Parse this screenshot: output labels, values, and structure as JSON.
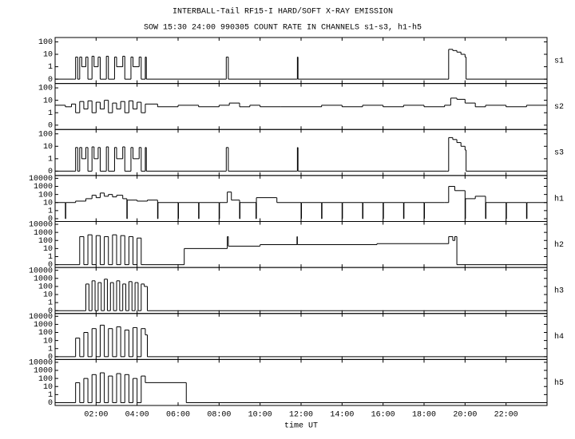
{
  "chart_data": {
    "type": "step",
    "title": "INTERBALL-Tail RF15-I HARD/SOFT X-RAY EMISSION",
    "subtitle": "SOW 15:30 24:00 990305  COUNT RATE IN CHANNELS s1-s3, h1-h5",
    "x_label": "time UT",
    "yscale": "log-with-zero",
    "color": "#000000",
    "xlim": [
      0,
      24
    ],
    "xticks": [
      {
        "value": 2,
        "label": "02:00"
      },
      {
        "value": 4,
        "label": "04:00"
      },
      {
        "value": 6,
        "label": "06:00"
      },
      {
        "value": 8,
        "label": "08:00"
      },
      {
        "value": 10,
        "label": "10:00"
      },
      {
        "value": 12,
        "label": "12:00"
      },
      {
        "value": 14,
        "label": "14:00"
      },
      {
        "value": 16,
        "label": "16:00"
      },
      {
        "value": 18,
        "label": "18:00"
      },
      {
        "value": 20,
        "label": "20:00"
      },
      {
        "value": 22,
        "label": "22:00"
      }
    ],
    "panels": [
      {
        "name": "s1",
        "ylim": [
          0,
          100
        ],
        "yticks": [
          0,
          1,
          10,
          100
        ],
        "x": [
          0,
          0.9,
          1.0,
          1.1,
          1.2,
          1.3,
          1.5,
          1.6,
          1.8,
          1.9,
          2.1,
          2.2,
          2.5,
          2.6,
          2.9,
          3.0,
          3.3,
          3.4,
          3.7,
          3.8,
          4.1,
          4.2,
          4.4,
          4.45,
          8.3,
          8.35,
          8.4,
          8.45,
          11.8,
          11.82,
          11.85,
          19.1,
          19.2,
          19.4,
          19.6,
          19.8,
          20.0,
          20.05,
          24
        ],
        "values": [
          0,
          0,
          6,
          0,
          6,
          1,
          6,
          0,
          7,
          1,
          6,
          0,
          7,
          0,
          6,
          1,
          7,
          0,
          6,
          1,
          6,
          0,
          6,
          0,
          0,
          6,
          6,
          0,
          0,
          6,
          0,
          0,
          25,
          20,
          15,
          10,
          6,
          0,
          0
        ]
      },
      {
        "name": "s2",
        "ylim": [
          0,
          100
        ],
        "yticks": [
          0,
          1,
          10,
          100
        ],
        "x": [
          0,
          0.5,
          0.8,
          1.0,
          1.2,
          1.4,
          1.6,
          1.8,
          2.0,
          2.2,
          2.4,
          2.6,
          2.8,
          3.0,
          3.2,
          3.4,
          3.6,
          3.8,
          4.0,
          4.2,
          4.4,
          5,
          6,
          7,
          8,
          8.5,
          9,
          9.5,
          10,
          11,
          12,
          13,
          14,
          15,
          16,
          17,
          18,
          19,
          19.3,
          19.6,
          20,
          20.5,
          21,
          22,
          23,
          24
        ],
        "values": [
          4,
          3,
          5,
          1,
          8,
          2,
          9,
          1,
          7,
          2,
          10,
          1,
          6,
          2,
          8,
          1,
          9,
          2,
          7,
          1,
          5,
          3,
          4,
          3,
          4,
          6,
          3,
          4,
          3,
          3,
          3,
          4,
          3,
          4,
          3,
          4,
          3,
          4,
          15,
          12,
          6,
          3,
          4,
          3,
          4,
          3
        ]
      },
      {
        "name": "s3",
        "ylim": [
          0,
          100
        ],
        "yticks": [
          0,
          1,
          10,
          100
        ],
        "x": [
          0,
          0.9,
          1.0,
          1.1,
          1.2,
          1.3,
          1.5,
          1.6,
          1.8,
          1.9,
          2.1,
          2.2,
          2.5,
          2.6,
          2.9,
          3.0,
          3.3,
          3.4,
          3.7,
          3.8,
          4.1,
          4.2,
          4.4,
          4.45,
          8.3,
          8.35,
          8.4,
          8.45,
          11.8,
          11.82,
          11.85,
          19.1,
          19.2,
          19.4,
          19.6,
          19.8,
          20.0,
          20.05,
          24
        ],
        "values": [
          0,
          0,
          8,
          0,
          8,
          1,
          8,
          0,
          9,
          1,
          8,
          0,
          9,
          0,
          8,
          1,
          9,
          0,
          8,
          1,
          8,
          0,
          8,
          0,
          0,
          8,
          8,
          0,
          0,
          8,
          0,
          0,
          50,
          35,
          20,
          10,
          5,
          0,
          0
        ]
      },
      {
        "name": "h1",
        "ylim": [
          0,
          10000
        ],
        "yticks": [
          0,
          1,
          10,
          100,
          1000,
          10000
        ],
        "x": [
          0,
          0.5,
          0.52,
          1,
          1.5,
          1.8,
          2,
          2.2,
          2.4,
          2.6,
          2.8,
          3,
          3.3,
          3.5,
          3.52,
          4,
          4.5,
          5,
          5.02,
          6,
          6.02,
          7,
          7.02,
          8,
          8.02,
          8.4,
          8.6,
          9,
          9.02,
          9.8,
          9.82,
          10.8,
          10.82,
          12,
          12.02,
          13,
          13.02,
          14,
          14.02,
          15,
          15.02,
          16,
          16.02,
          17,
          17.02,
          18,
          18.02,
          19,
          19.2,
          19.5,
          20,
          20.02,
          20.5,
          21,
          21.02,
          22,
          22.02,
          23,
          23.02,
          24
        ],
        "values": [
          10,
          0,
          10,
          15,
          30,
          80,
          40,
          150,
          60,
          100,
          50,
          80,
          30,
          0,
          20,
          15,
          20,
          0,
          10,
          0,
          10,
          0,
          10,
          0,
          10,
          200,
          20,
          0,
          10,
          0,
          40,
          40,
          10,
          0,
          10,
          0,
          10,
          0,
          10,
          0,
          10,
          0,
          10,
          0,
          10,
          0,
          10,
          10,
          1000,
          300,
          0,
          30,
          60,
          0,
          10,
          0,
          10,
          0,
          10,
          10
        ]
      },
      {
        "name": "h2",
        "ylim": [
          0,
          10000
        ],
        "yticks": [
          0,
          1,
          10,
          100,
          1000,
          10000
        ],
        "x": [
          0,
          1.2,
          1.4,
          1.6,
          1.8,
          2,
          2.2,
          2.4,
          2.6,
          2.8,
          3,
          3.2,
          3.4,
          3.6,
          3.8,
          4,
          4.2,
          4.4,
          6.3,
          8.4,
          8.45,
          10,
          11.8,
          11.82,
          15.7,
          19.2,
          19.4,
          19.5,
          19.6,
          24
        ],
        "values": [
          0,
          300,
          0,
          500,
          0,
          400,
          0,
          300,
          0,
          500,
          0,
          400,
          0,
          300,
          0,
          200,
          0,
          0,
          10,
          300,
          20,
          30,
          300,
          30,
          40,
          300,
          100,
          300,
          0,
          0
        ]
      },
      {
        "name": "h3",
        "ylim": [
          0,
          10000
        ],
        "yticks": [
          0,
          1,
          10,
          100,
          1000,
          10000
        ],
        "x": [
          0,
          1.5,
          1.65,
          1.8,
          1.95,
          2.1,
          2.25,
          2.4,
          2.55,
          2.7,
          2.85,
          3,
          3.15,
          3.3,
          3.45,
          3.6,
          3.75,
          3.9,
          4.05,
          4.2,
          4.35,
          4.5,
          24
        ],
        "values": [
          0,
          200,
          0,
          500,
          0,
          300,
          0,
          800,
          0,
          300,
          0,
          500,
          0,
          200,
          0,
          400,
          0,
          300,
          0,
          200,
          100,
          0,
          0
        ]
      },
      {
        "name": "h4",
        "ylim": [
          0,
          10000
        ],
        "yticks": [
          0,
          1,
          10,
          100,
          1000,
          10000
        ],
        "x": [
          0,
          1.0,
          1.2,
          1.4,
          1.6,
          1.8,
          2.0,
          2.2,
          2.4,
          2.6,
          2.8,
          3.0,
          3.2,
          3.4,
          3.6,
          3.8,
          4.0,
          4.2,
          4.4,
          4.5,
          24
        ],
        "values": [
          0,
          20,
          0,
          100,
          0,
          300,
          0,
          800,
          0,
          300,
          0,
          500,
          0,
          200,
          0,
          400,
          0,
          300,
          50,
          0,
          0
        ]
      },
      {
        "name": "h5",
        "ylim": [
          0,
          10000
        ],
        "yticks": [
          0,
          1,
          10,
          100,
          1000,
          10000
        ],
        "x": [
          0,
          1.0,
          1.2,
          1.4,
          1.6,
          1.8,
          2.0,
          2.2,
          2.4,
          2.6,
          2.8,
          3.0,
          3.2,
          3.4,
          3.6,
          3.8,
          4.0,
          4.2,
          4.4,
          6.4,
          24
        ],
        "values": [
          0,
          30,
          0,
          100,
          0,
          300,
          0,
          500,
          0,
          200,
          0,
          400,
          0,
          300,
          0,
          100,
          0,
          200,
          30,
          0,
          0
        ]
      }
    ]
  }
}
